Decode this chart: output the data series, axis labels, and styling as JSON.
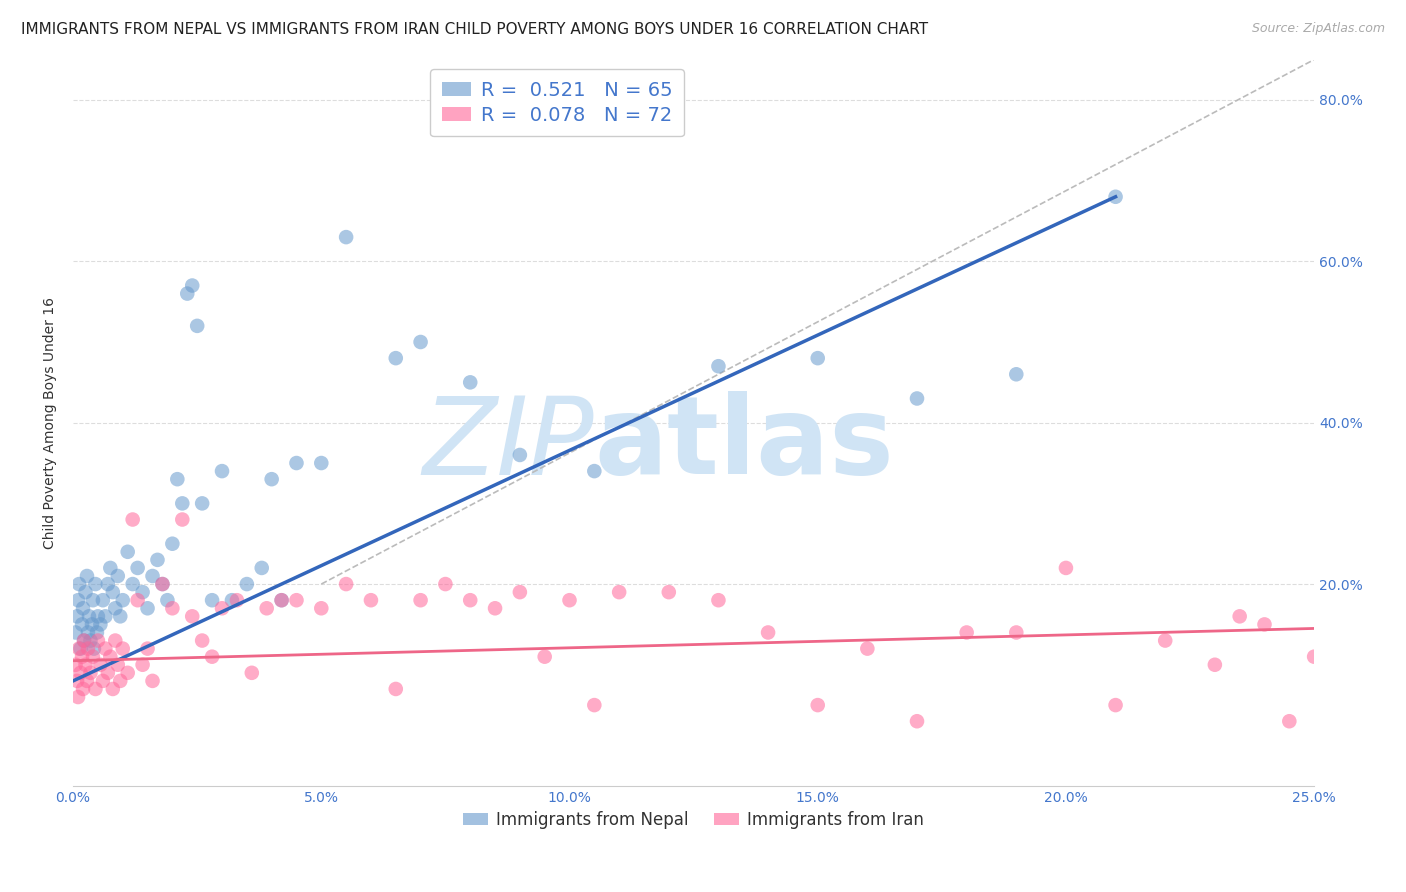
{
  "title": "IMMIGRANTS FROM NEPAL VS IMMIGRANTS FROM IRAN CHILD POVERTY AMONG BOYS UNDER 16 CORRELATION CHART",
  "source": "Source: ZipAtlas.com",
  "ylabel": "Child Poverty Among Boys Under 16",
  "x_tick_labels": [
    "0.0%",
    "5.0%",
    "10.0%",
    "15.0%",
    "20.0%",
    "25.0%"
  ],
  "x_tick_values": [
    0.0,
    5.0,
    10.0,
    15.0,
    20.0,
    25.0
  ],
  "y_tick_labels": [
    "20.0%",
    "40.0%",
    "60.0%",
    "80.0%"
  ],
  "y_tick_values": [
    20.0,
    40.0,
    60.0,
    80.0
  ],
  "xlim": [
    0.0,
    25.0
  ],
  "ylim": [
    -5.0,
    85.0
  ],
  "nepal_color": "#6699CC",
  "iran_color": "#FF6699",
  "nepal_R": 0.521,
  "nepal_N": 65,
  "iran_R": 0.078,
  "iran_N": 72,
  "nepal_scatter_x": [
    0.05,
    0.08,
    0.1,
    0.12,
    0.15,
    0.18,
    0.2,
    0.22,
    0.25,
    0.28,
    0.3,
    0.32,
    0.35,
    0.38,
    0.4,
    0.42,
    0.45,
    0.48,
    0.5,
    0.55,
    0.6,
    0.65,
    0.7,
    0.75,
    0.8,
    0.85,
    0.9,
    0.95,
    1.0,
    1.1,
    1.2,
    1.3,
    1.4,
    1.5,
    1.6,
    1.7,
    1.8,
    1.9,
    2.0,
    2.1,
    2.2,
    2.3,
    2.4,
    2.5,
    2.6,
    2.8,
    3.0,
    3.2,
    3.5,
    3.8,
    4.0,
    4.2,
    4.5,
    5.0,
    5.5,
    6.5,
    7.0,
    8.0,
    9.0,
    10.5,
    13.0,
    15.0,
    17.0,
    19.0,
    21.0
  ],
  "nepal_scatter_y": [
    14.0,
    16.0,
    18.0,
    20.0,
    12.0,
    15.0,
    17.0,
    13.0,
    19.0,
    21.0,
    14.0,
    16.0,
    13.0,
    15.0,
    18.0,
    12.0,
    20.0,
    14.0,
    16.0,
    15.0,
    18.0,
    16.0,
    20.0,
    22.0,
    19.0,
    17.0,
    21.0,
    16.0,
    18.0,
    24.0,
    20.0,
    22.0,
    19.0,
    17.0,
    21.0,
    23.0,
    20.0,
    18.0,
    25.0,
    33.0,
    30.0,
    56.0,
    57.0,
    52.0,
    30.0,
    18.0,
    34.0,
    18.0,
    20.0,
    22.0,
    33.0,
    18.0,
    35.0,
    35.0,
    63.0,
    48.0,
    50.0,
    45.0,
    36.0,
    34.0,
    47.0,
    48.0,
    43.0,
    46.0,
    68.0
  ],
  "iran_scatter_x": [
    0.05,
    0.08,
    0.1,
    0.12,
    0.15,
    0.18,
    0.2,
    0.22,
    0.25,
    0.28,
    0.3,
    0.35,
    0.4,
    0.45,
    0.5,
    0.55,
    0.6,
    0.65,
    0.7,
    0.75,
    0.8,
    0.85,
    0.9,
    0.95,
    1.0,
    1.1,
    1.2,
    1.3,
    1.4,
    1.5,
    1.6,
    1.8,
    2.0,
    2.2,
    2.4,
    2.6,
    2.8,
    3.0,
    3.3,
    3.6,
    3.9,
    4.2,
    4.5,
    5.0,
    5.5,
    6.0,
    6.5,
    7.0,
    7.5,
    8.0,
    8.5,
    9.0,
    9.5,
    10.0,
    10.5,
    11.0,
    12.0,
    13.0,
    14.0,
    15.0,
    16.0,
    17.0,
    18.0,
    19.0,
    20.0,
    21.0,
    22.0,
    23.0,
    23.5,
    24.0,
    24.5,
    25.0
  ],
  "iran_scatter_y": [
    10.0,
    8.0,
    6.0,
    12.0,
    9.0,
    11.0,
    7.0,
    13.0,
    10.0,
    8.0,
    12.0,
    9.0,
    11.0,
    7.0,
    13.0,
    10.0,
    8.0,
    12.0,
    9.0,
    11.0,
    7.0,
    13.0,
    10.0,
    8.0,
    12.0,
    9.0,
    28.0,
    18.0,
    10.0,
    12.0,
    8.0,
    20.0,
    17.0,
    28.0,
    16.0,
    13.0,
    11.0,
    17.0,
    18.0,
    9.0,
    17.0,
    18.0,
    18.0,
    17.0,
    20.0,
    18.0,
    7.0,
    18.0,
    20.0,
    18.0,
    17.0,
    19.0,
    11.0,
    18.0,
    5.0,
    19.0,
    19.0,
    18.0,
    14.0,
    5.0,
    12.0,
    3.0,
    14.0,
    14.0,
    22.0,
    5.0,
    13.0,
    10.0,
    16.0,
    15.0,
    3.0,
    11.0
  ],
  "nepal_line_x": [
    0.0,
    21.0
  ],
  "nepal_line_y": [
    8.0,
    68.0
  ],
  "iran_line_x": [
    0.0,
    25.0
  ],
  "iran_line_y": [
    10.5,
    14.5
  ],
  "diag_line_x": [
    5.0,
    25.0
  ],
  "diag_line_y": [
    20.0,
    85.0
  ],
  "watermark_zip": "ZIP",
  "watermark_atlas": "atlas",
  "watermark_color": "#D0E4F5",
  "background_color": "#FFFFFF",
  "grid_color": "#DDDDDD",
  "title_fontsize": 11,
  "axis_label_fontsize": 10,
  "tick_label_color": "#4477CC",
  "legend_label1": "Immigrants from Nepal",
  "legend_label2": "Immigrants from Iran"
}
